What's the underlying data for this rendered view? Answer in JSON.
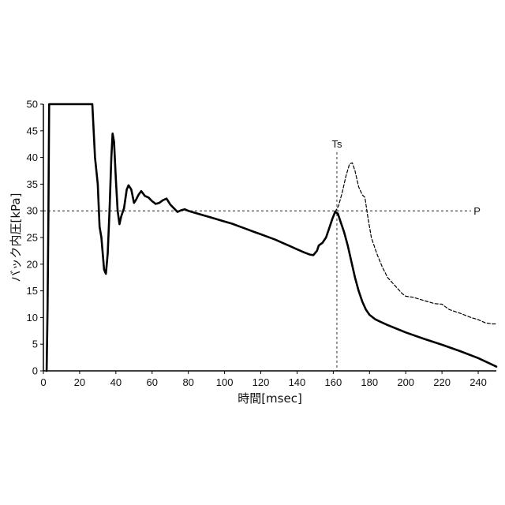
{
  "chart_data": {
    "type": "line",
    "xlabel": "時間[msec]",
    "ylabel": "バック内圧[kPa]",
    "xlim": [
      0,
      250
    ],
    "ylim": [
      0,
      50
    ],
    "x_ticks": [
      0,
      20,
      40,
      60,
      80,
      100,
      120,
      140,
      160,
      180,
      200,
      220,
      240
    ],
    "x_tick_labels": [
      "0",
      "20",
      "40",
      "60",
      "80",
      "100",
      "120",
      "140",
      "160",
      "180",
      "200",
      "220",
      "240"
    ],
    "y_ticks": [
      0,
      5,
      10,
      15,
      20,
      25,
      30,
      35,
      40,
      45,
      50
    ],
    "y_tick_labels": [
      "0",
      "5",
      "10",
      "15",
      "20",
      "25",
      "30",
      "35",
      "40",
      "45",
      "50"
    ],
    "grid": false,
    "annotations": [
      {
        "text": "Ts",
        "x": 162,
        "kind": "vertical-dashed-line"
      },
      {
        "text": "P",
        "y": 30,
        "kind": "horizontal-dashed-line"
      }
    ],
    "series": [
      {
        "style": "solid",
        "color": "#000000",
        "points": [
          [
            1.8,
            0
          ],
          [
            2.3,
            12
          ],
          [
            2.8,
            30
          ],
          [
            3.2,
            50
          ],
          [
            27,
            50
          ],
          [
            28.5,
            40
          ],
          [
            30,
            35
          ],
          [
            31,
            27
          ],
          [
            32,
            25
          ],
          [
            33.5,
            19
          ],
          [
            34.5,
            18.2
          ],
          [
            35.5,
            22
          ],
          [
            36.5,
            30
          ],
          [
            37.5,
            40
          ],
          [
            38.2,
            44.5
          ],
          [
            39,
            43
          ],
          [
            40,
            36
          ],
          [
            41,
            30
          ],
          [
            42,
            27.5
          ],
          [
            43,
            29
          ],
          [
            44.5,
            30.5
          ],
          [
            46,
            34
          ],
          [
            47,
            34.8
          ],
          [
            48.5,
            34
          ],
          [
            50,
            31.5
          ],
          [
            51,
            32
          ],
          [
            52.5,
            33
          ],
          [
            54,
            33.7
          ],
          [
            56,
            32.8
          ],
          [
            58,
            32.5
          ],
          [
            60,
            31.8
          ],
          [
            62,
            31.3
          ],
          [
            64,
            31.5
          ],
          [
            66,
            32
          ],
          [
            68,
            32.3
          ],
          [
            70,
            31.2
          ],
          [
            72,
            30.5
          ],
          [
            74,
            29.8
          ],
          [
            76,
            30.1
          ],
          [
            78,
            30.3
          ],
          [
            80,
            30
          ],
          [
            82,
            29.8
          ],
          [
            85,
            29.5
          ],
          [
            88,
            29.2
          ],
          [
            92,
            28.8
          ],
          [
            96,
            28.4
          ],
          [
            100,
            28
          ],
          [
            104,
            27.6
          ],
          [
            108,
            27.1
          ],
          [
            112,
            26.6
          ],
          [
            116,
            26.1
          ],
          [
            120,
            25.6
          ],
          [
            124,
            25.1
          ],
          [
            128,
            24.6
          ],
          [
            132,
            24
          ],
          [
            136,
            23.4
          ],
          [
            140,
            22.8
          ],
          [
            144,
            22.2
          ],
          [
            147,
            21.8
          ],
          [
            149,
            21.7
          ],
          [
            151,
            22.5
          ],
          [
            152,
            23.5
          ],
          [
            154,
            24
          ],
          [
            156,
            25
          ],
          [
            158,
            27
          ],
          [
            159.5,
            28.5
          ],
          [
            161,
            29.8
          ],
          [
            162.5,
            29.5
          ],
          [
            164,
            28
          ],
          [
            166,
            26
          ],
          [
            168,
            23.5
          ],
          [
            170,
            20.5
          ],
          [
            172,
            17.5
          ],
          [
            174,
            15
          ],
          [
            176,
            13
          ],
          [
            178,
            11.5
          ],
          [
            180,
            10.5
          ],
          [
            183,
            9.7
          ],
          [
            186,
            9.2
          ],
          [
            190,
            8.6
          ],
          [
            200,
            7.2
          ],
          [
            210,
            6
          ],
          [
            220,
            4.9
          ],
          [
            230,
            3.7
          ],
          [
            240,
            2.4
          ],
          [
            250,
            0.8
          ]
        ]
      },
      {
        "style": "dashed",
        "color": "#000000",
        "points": [
          [
            161,
            29.8
          ],
          [
            163,
            31
          ],
          [
            165,
            33.5
          ],
          [
            167,
            36.5
          ],
          [
            169,
            38.8
          ],
          [
            170.5,
            39
          ],
          [
            172,
            37.5
          ],
          [
            174,
            34.5
          ],
          [
            176,
            33
          ],
          [
            177.5,
            32.5
          ],
          [
            179,
            29
          ],
          [
            181,
            25
          ],
          [
            184,
            22
          ],
          [
            187,
            19.5
          ],
          [
            190,
            17.5
          ],
          [
            194,
            16
          ],
          [
            198,
            14.5
          ],
          [
            200,
            14
          ],
          [
            204,
            13.8
          ],
          [
            210,
            13.2
          ],
          [
            216,
            12.6
          ],
          [
            220,
            12.5
          ],
          [
            224,
            11.5
          ],
          [
            230,
            10.8
          ],
          [
            236,
            10
          ],
          [
            240,
            9.6
          ],
          [
            244,
            9
          ],
          [
            248,
            8.8
          ],
          [
            250,
            8.8
          ]
        ]
      }
    ]
  }
}
